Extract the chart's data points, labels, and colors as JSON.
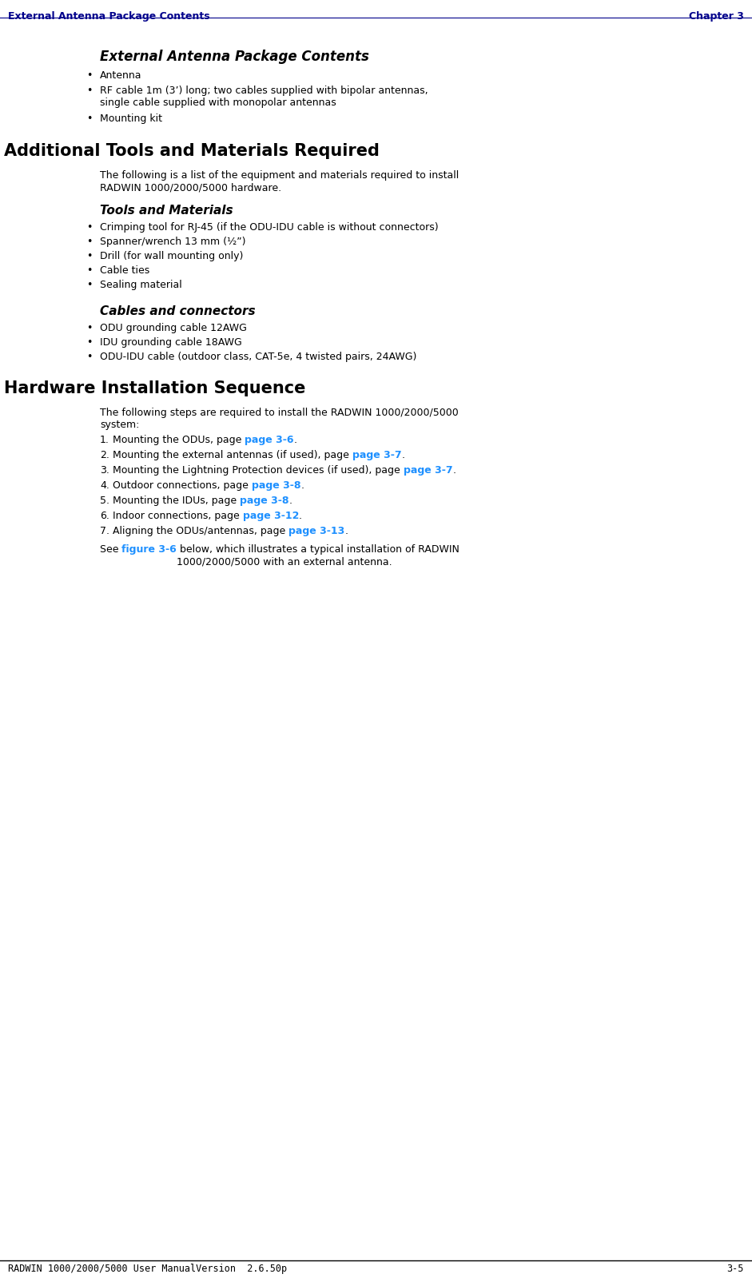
{
  "header_left": "External Antenna Package Contents",
  "header_right": "Chapter 3",
  "header_color": "#00008B",
  "footer_text": "RADWIN 1000/2000/5000 User ManualVersion  2.6.50p",
  "footer_right": "3-5",
  "bg_color": "#ffffff",
  "black": "#000000",
  "link_color": "#1E90FF",
  "section1_title": "External Antenna Package Contents",
  "section1_bullets": [
    "Antenna",
    "RF cable 1m (3’) long; two cables supplied with bipolar antennas,\nsingle cable supplied with monopolar antennas",
    "Mounting kit"
  ],
  "section2_title": "Additional Tools and Materials Required",
  "section2_intro": "The following is a list of the equipment and materials required to install\nRADWIN 1000/2000/5000 hardware.",
  "section2a_title": "Tools and Materials",
  "section2a_bullets": [
    "Crimping tool for RJ-45 (if the ODU-IDU cable is without connectors)",
    "Spanner/wrench 13 mm (½”)",
    "Drill (for wall mounting only)",
    "Cable ties",
    "Sealing material"
  ],
  "section2b_title": "Cables and connectors",
  "section2b_bullets": [
    "ODU grounding cable 12AWG",
    "IDU grounding cable 18AWG",
    "ODU-IDU cable (outdoor class, CAT-5e, 4 twisted pairs, 24AWG)"
  ],
  "section3_title": "Hardware Installation Sequence",
  "section3_intro": "The following steps are required to install the RADWIN 1000/2000/5000\nsystem:",
  "section3_numbered": [
    [
      "Mounting the ODUs, page ",
      "page 3-6",
      "."
    ],
    [
      "Mounting the external antennas (if used), page ",
      "page 3-7",
      "."
    ],
    [
      "Mounting the Lightning Protection devices (if used), page ",
      "page 3-7",
      "."
    ],
    [
      "Outdoor connections, page ",
      "page 3-8",
      "."
    ],
    [
      "Mounting the IDUs, page ",
      "page 3-8",
      "."
    ],
    [
      "Indoor connections, page ",
      "page 3-12",
      "."
    ],
    [
      "Aligning the ODUs/antennas, page ",
      "page 3-13",
      "."
    ]
  ],
  "section3_see": [
    [
      "See ",
      "#000000",
      false
    ],
    [
      "figure 3-6",
      "#1E90FF",
      true
    ],
    [
      " below, which illustrates a typical installation of RADWIN\n1000/2000/5000 with an external antenna.",
      "#000000",
      false
    ]
  ]
}
